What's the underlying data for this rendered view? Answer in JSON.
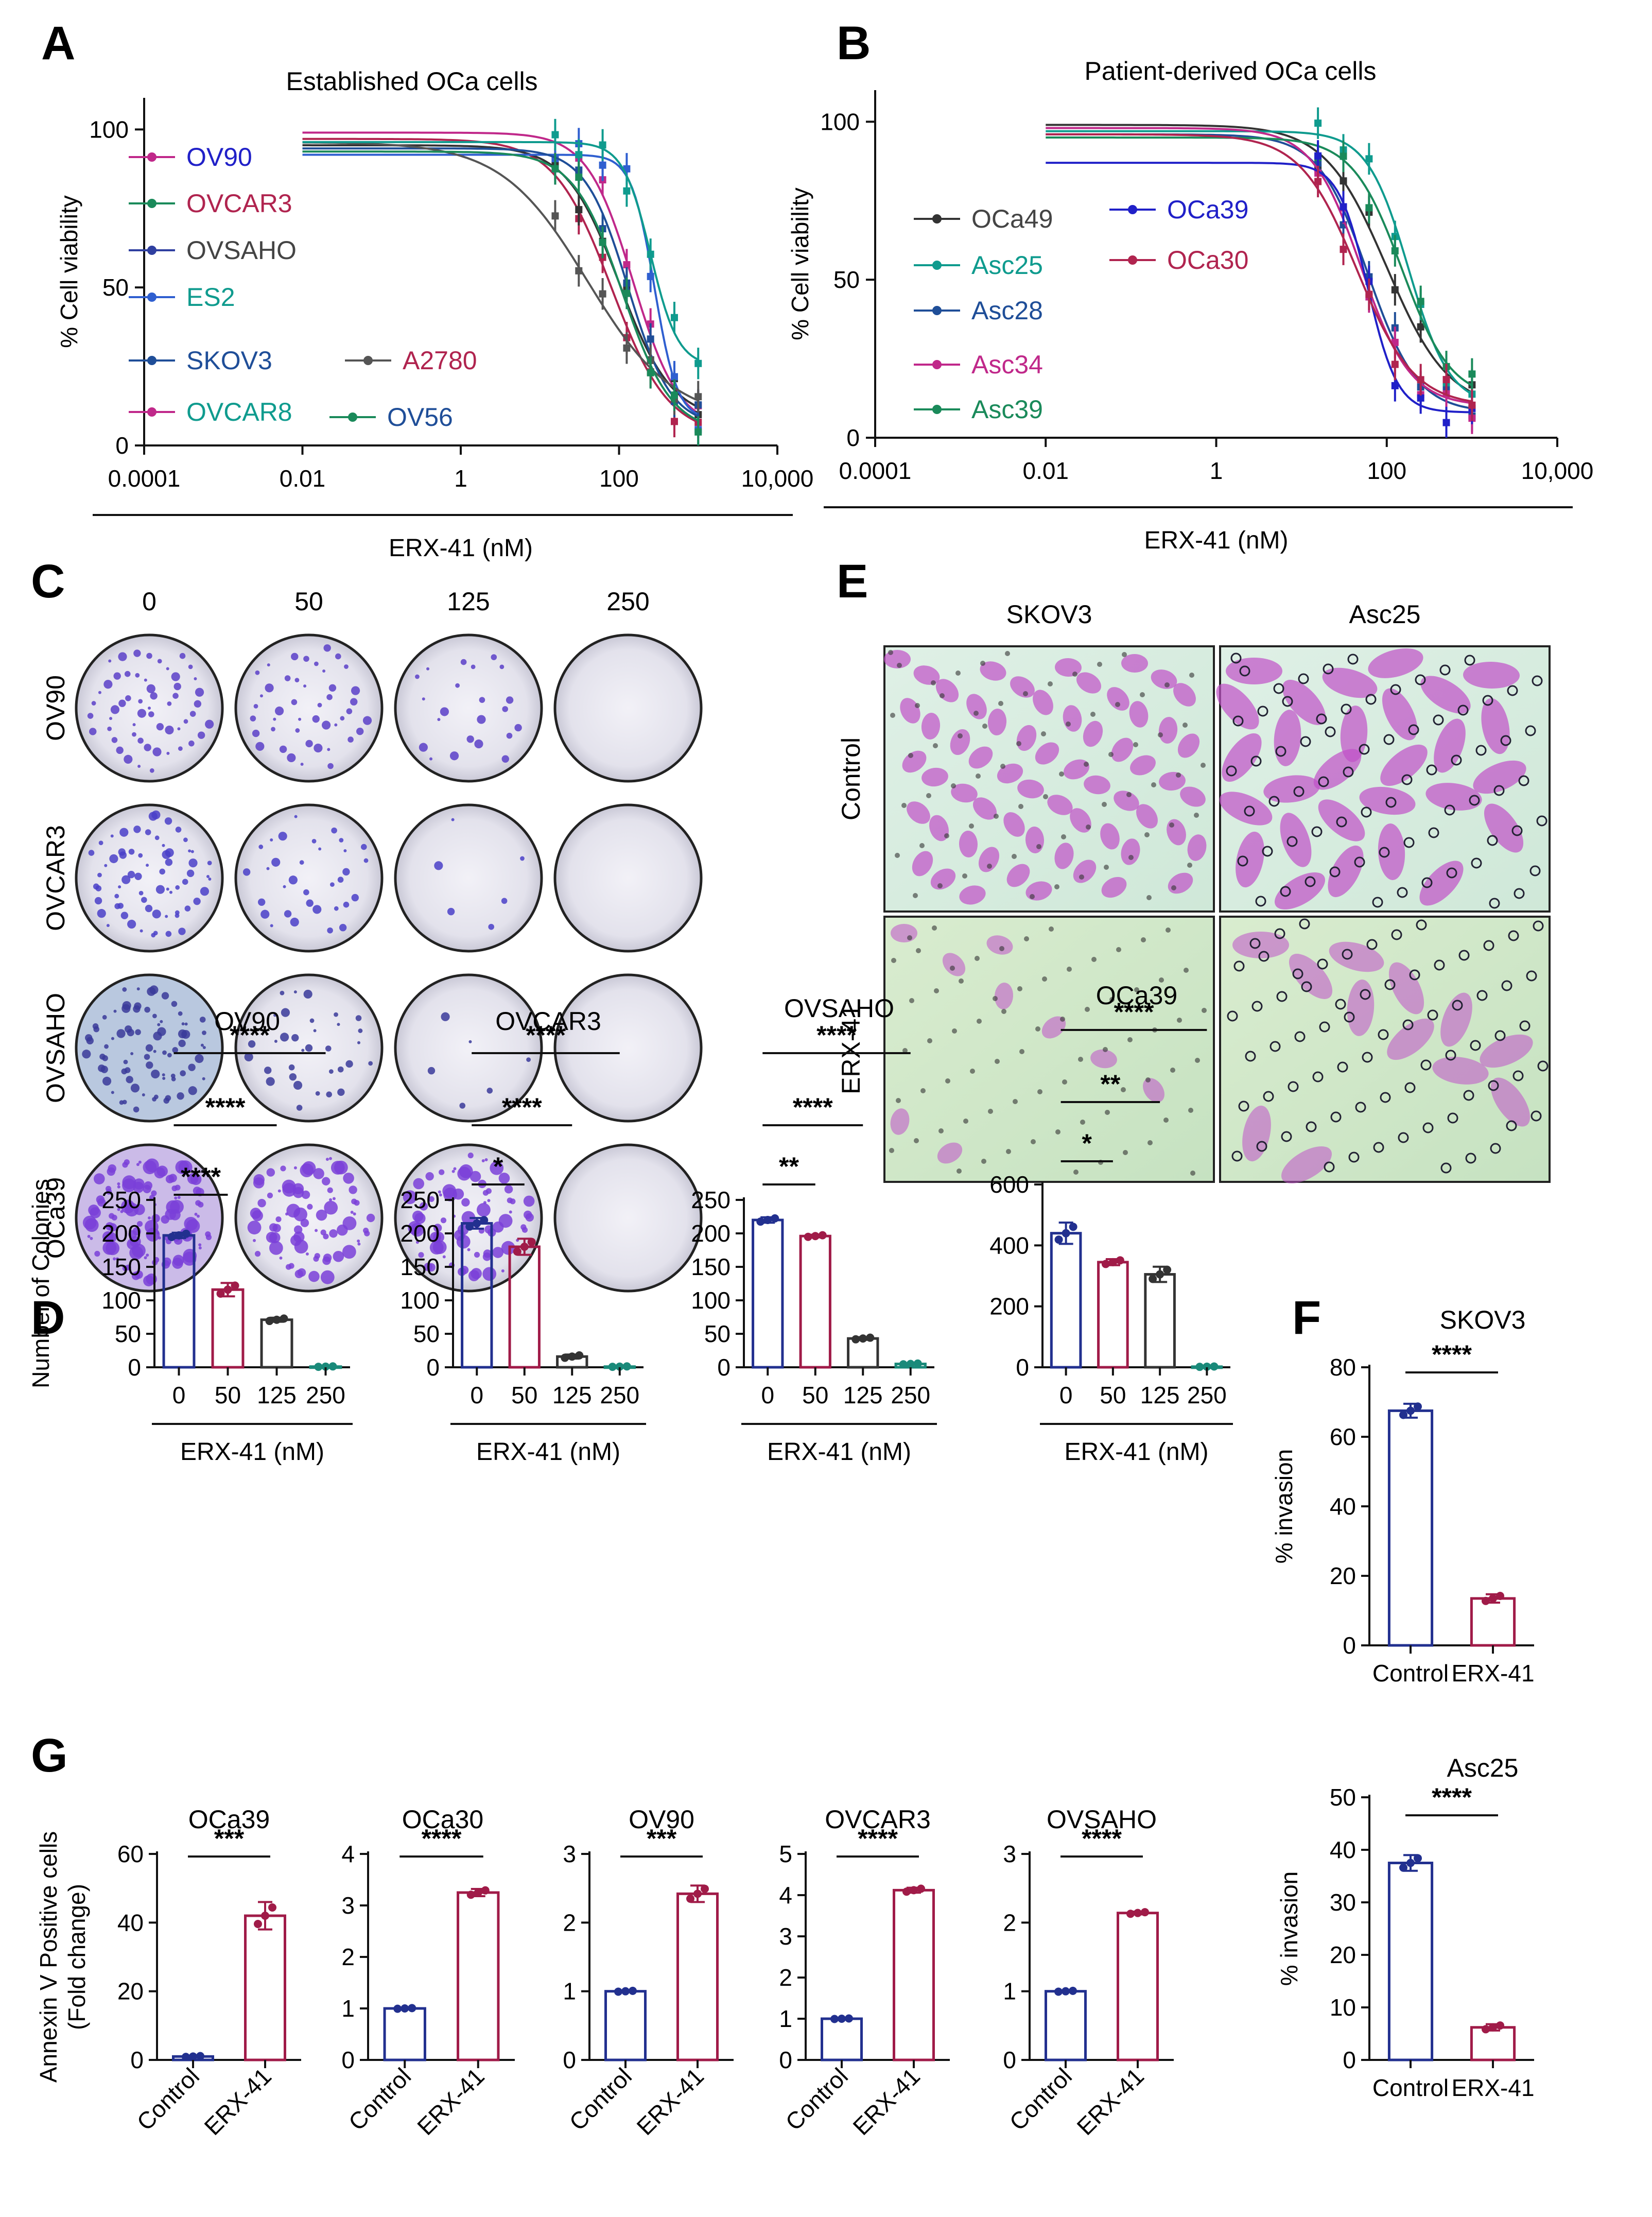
{
  "panels": {
    "A": {
      "letter": "A",
      "title": "Established OCa cells"
    },
    "B": {
      "letter": "B",
      "title": "Patient-derived OCa cells"
    },
    "C": {
      "letter": "C"
    },
    "D": {
      "letter": "D"
    },
    "E": {
      "letter": "E"
    },
    "F": {
      "letter": "F"
    },
    "G": {
      "letter": "G"
    }
  },
  "panel_C": {
    "concentrations": [
      "0",
      "50",
      "125",
      "250"
    ],
    "rows": [
      {
        "label": "OV90",
        "density": [
          0.5,
          0.4,
          0.2,
          0
        ]
      },
      {
        "label": "OVCAR3",
        "density": [
          0.6,
          0.3,
          0.05,
          0
        ]
      },
      {
        "label": "OVSAHO",
        "density": [
          0.7,
          0.3,
          0.05,
          0
        ]
      },
      {
        "label": "OCa39",
        "density": [
          1.0,
          0.7,
          0.7,
          0
        ]
      }
    ]
  },
  "panel_E": {
    "columns": [
      "SKOV3",
      "Asc25"
    ],
    "rows": [
      "Control",
      "ERX-41"
    ]
  },
  "chart_data": [
    {
      "id": "A",
      "type": "line",
      "title": "Established OCa cells",
      "xlabel": "ERX-41 (nM)",
      "ylabel": "% Cell viability",
      "xscale": "log",
      "xlim": [
        0.0001,
        10000
      ],
      "ylim": [
        0,
        110
      ],
      "xticks": [
        0.0001,
        0.01,
        1,
        100,
        10000
      ],
      "xticklabels": [
        "0.0001",
        "0.01",
        "1",
        "100",
        "10,000"
      ],
      "yticks": [
        0,
        50,
        100
      ],
      "yticklabels": [
        "0",
        "50",
        "100"
      ],
      "series": [
        {
          "name": "OV90",
          "color": "#c0288a",
          "top": 99,
          "bottom": 5,
          "ic50": 150,
          "hill": 1.5
        },
        {
          "name": "OVCAR3",
          "color": "#b0244f",
          "top": 97,
          "bottom": 3,
          "ic50": 80,
          "hill": 1.2
        },
        {
          "name": "OVSAHO",
          "color": "#333333",
          "top": 95,
          "bottom": 8,
          "ic50": 100,
          "hill": 1.3
        },
        {
          "name": "ES2",
          "color": "#2f5fd0",
          "top": 92,
          "bottom": 8,
          "ic50": 280,
          "hill": 3.0
        },
        {
          "name": "SKOV3",
          "color": "#1f4e98",
          "top": 94,
          "bottom": 6,
          "ic50": 130,
          "hill": 1.6
        },
        {
          "name": "A2780",
          "color": "#555555",
          "top": 96,
          "bottom": 8,
          "ic50": 40,
          "hill": 0.8
        },
        {
          "name": "OVCAR8",
          "color": "#0f9b8e",
          "top": 96,
          "bottom": 25,
          "ic50": 250,
          "hill": 2.5
        },
        {
          "name": "OV56",
          "color": "#1a8a5a",
          "top": 93,
          "bottom": 4,
          "ic50": 110,
          "hill": 1.4
        }
      ],
      "legend": [
        {
          "name": "OV90",
          "color": "#2020c8",
          "marker": "#c0288a"
        },
        {
          "name": "OVCAR3",
          "color": "#b0244f",
          "marker": "#1a8a5a"
        },
        {
          "name": "OVSAHO",
          "color": "#444444",
          "marker": "#2f3fa0"
        },
        {
          "name": "ES2",
          "color": "#0f9b8e",
          "marker": "#2f5fd0"
        },
        {
          "name": "SKOV3",
          "color": "#1f4e98",
          "marker": "#1f4e98"
        },
        {
          "name": "A2780",
          "color": "#b0244f",
          "marker": "#555555"
        },
        {
          "name": "OVCAR8",
          "color": "#0f9b8e",
          "marker": "#c0288a"
        },
        {
          "name": "OV56",
          "color": "#1f4e98",
          "marker": "#1a8a5a"
        }
      ]
    },
    {
      "id": "B",
      "type": "line",
      "title": "Patient-derived OCa cells",
      "xlabel": "ERX-41 (nM)",
      "ylabel": "% Cell viability",
      "xscale": "log",
      "xlim": [
        0.0001,
        10000
      ],
      "ylim": [
        0,
        110
      ],
      "xticks": [
        0.0001,
        0.01,
        1,
        100,
        10000
      ],
      "xticklabels": [
        "0.0001",
        "0.01",
        "1",
        "100",
        "10,000"
      ],
      "yticks": [
        0,
        50,
        100
      ],
      "yticklabels": [
        "0",
        "50",
        "100"
      ],
      "series": [
        {
          "name": "OCa49",
          "color": "#333333",
          "top": 99,
          "bottom": 9,
          "ic50": 100,
          "hill": 1.2
        },
        {
          "name": "Asc25",
          "color": "#0f9b8e",
          "top": 97,
          "bottom": 10,
          "ic50": 180,
          "hill": 1.8
        },
        {
          "name": "Asc28",
          "color": "#1f4e98",
          "top": 96,
          "bottom": 8,
          "ic50": 60,
          "hill": 1.5
        },
        {
          "name": "Asc34",
          "color": "#c0288a",
          "top": 98,
          "bottom": 10,
          "ic50": 50,
          "hill": 1.5
        },
        {
          "name": "Asc39",
          "color": "#1a8a5a",
          "top": 95,
          "bottom": 12,
          "ic50": 150,
          "hill": 1.5
        },
        {
          "name": "OCa39",
          "color": "#2020c8",
          "top": 87,
          "bottom": 8,
          "ic50": 60,
          "hill": 2.5
        },
        {
          "name": "OCa30",
          "color": "#b0244f",
          "top": 96,
          "bottom": 10,
          "ic50": 45,
          "hill": 1.3
        }
      ],
      "legend": [
        {
          "name": "OCa49",
          "color": "#444444",
          "marker": "#333333"
        },
        {
          "name": "Asc25",
          "color": "#0f9b8e",
          "marker": "#0f9b8e"
        },
        {
          "name": "Asc28",
          "color": "#1f4e98",
          "marker": "#1f4e98"
        },
        {
          "name": "Asc34",
          "color": "#c0288a",
          "marker": "#c0288a"
        },
        {
          "name": "Asc39",
          "color": "#1a8a5a",
          "marker": "#1a8a5a"
        },
        {
          "name": "OCa39",
          "color": "#2020c8",
          "marker": "#2020c8"
        },
        {
          "name": "OCa30",
          "color": "#b0244f",
          "marker": "#b0244f"
        }
      ]
    },
    {
      "id": "D1",
      "type": "bar",
      "title": "OV90",
      "xlabel": "ERX-41 (nM)",
      "ylabel": "Number of Colonies",
      "categories": [
        "0",
        "50",
        "125",
        "250"
      ],
      "values": [
        197,
        116,
        71,
        1
      ],
      "errors": [
        4,
        10,
        3,
        0.5
      ],
      "colors": [
        "#22308f",
        "#a01b48",
        "#333333",
        "#1a8a7a"
      ],
      "ylim": [
        0,
        250
      ],
      "yticks": [
        0,
        50,
        100,
        150,
        200,
        250
      ],
      "sig": [
        {
          "to": 1,
          "label": "****"
        },
        {
          "to": 2,
          "label": "****"
        },
        {
          "to": 3,
          "label": "****"
        }
      ]
    },
    {
      "id": "D2",
      "type": "bar",
      "title": "OVCAR3",
      "xlabel": "ERX-41 (nM)",
      "categories": [
        "0",
        "50",
        "125",
        "250"
      ],
      "values": [
        215,
        180,
        16,
        1
      ],
      "errors": [
        8,
        12,
        3,
        0.5
      ],
      "colors": [
        "#22308f",
        "#a01b48",
        "#333333",
        "#1a8a7a"
      ],
      "ylim": [
        0,
        250
      ],
      "yticks": [
        0,
        50,
        100,
        150,
        200,
        250
      ],
      "sig": [
        {
          "to": 1,
          "label": "*"
        },
        {
          "to": 2,
          "label": "****"
        },
        {
          "to": 3,
          "label": "****"
        }
      ]
    },
    {
      "id": "D3",
      "type": "bar",
      "title": "OVSAHO",
      "xlabel": "ERX-41 (nM)",
      "categories": [
        "0",
        "50",
        "125",
        "250"
      ],
      "values": [
        220,
        196,
        43,
        5
      ],
      "errors": [
        4,
        2,
        2,
        1
      ],
      "colors": [
        "#22308f",
        "#a01b48",
        "#333333",
        "#1a8a7a"
      ],
      "ylim": [
        0,
        250
      ],
      "yticks": [
        0,
        50,
        100,
        150,
        200,
        250
      ],
      "sig": [
        {
          "to": 1,
          "label": "**"
        },
        {
          "to": 2,
          "label": "****"
        },
        {
          "to": 3,
          "label": "****"
        }
      ]
    },
    {
      "id": "D4",
      "type": "bar",
      "title": "OCa39",
      "xlabel": "ERX-41 (nM)",
      "categories": [
        "0",
        "50",
        "125",
        "250"
      ],
      "values": [
        440,
        345,
        305,
        2
      ],
      "errors": [
        35,
        10,
        25,
        1
      ],
      "colors": [
        "#22308f",
        "#a01b48",
        "#333333",
        "#1a8a7a"
      ],
      "ylim": [
        0,
        600
      ],
      "yticks": [
        0,
        200,
        400,
        600
      ],
      "sig": [
        {
          "to": 1,
          "label": "*"
        },
        {
          "to": 2,
          "label": "**"
        },
        {
          "to": 3,
          "label": "****"
        }
      ]
    },
    {
      "id": "F1",
      "type": "bar",
      "title": "SKOV3",
      "ylabel": "% invasion",
      "categories": [
        "Control",
        "ERX-41"
      ],
      "values": [
        67.5,
        13.5
      ],
      "errors": [
        2,
        1.2
      ],
      "colors": [
        "#22308f",
        "#a01b48"
      ],
      "ylim": [
        0,
        80
      ],
      "yticks": [
        0,
        20,
        40,
        60,
        80
      ],
      "sig": [
        {
          "to": 1,
          "label": "****"
        }
      ]
    },
    {
      "id": "F2",
      "type": "bar",
      "title": "Asc25",
      "ylabel": "% invasion",
      "categories": [
        "Control",
        "ERX-41"
      ],
      "values": [
        37.5,
        6.2
      ],
      "errors": [
        1.5,
        0.6
      ],
      "colors": [
        "#22308f",
        "#a01b48"
      ],
      "ylim": [
        0,
        50
      ],
      "yticks": [
        0,
        10,
        20,
        30,
        40,
        50
      ],
      "sig": [
        {
          "to": 1,
          "label": "****"
        }
      ]
    },
    {
      "id": "G1",
      "type": "bar",
      "title": "OCa39",
      "ylabel": "Annexin V Positive cells (Fold change)",
      "categories": [
        "Control",
        "ERX-41"
      ],
      "values": [
        1,
        42
      ],
      "errors": [
        0.2,
        4
      ],
      "colors": [
        "#22308f",
        "#a01b48"
      ],
      "ylim": [
        0,
        60
      ],
      "yticks": [
        0,
        20,
        40,
        60
      ],
      "sig": [
        {
          "to": 1,
          "label": "***"
        }
      ]
    },
    {
      "id": "G2",
      "type": "bar",
      "title": "OCa30",
      "categories": [
        "Control",
        "ERX-41"
      ],
      "values": [
        1,
        3.25
      ],
      "errors": [
        0.01,
        0.07
      ],
      "colors": [
        "#22308f",
        "#a01b48"
      ],
      "ylim": [
        0,
        4
      ],
      "yticks": [
        0,
        1,
        2,
        3,
        4
      ],
      "sig": [
        {
          "to": 1,
          "label": "****"
        }
      ]
    },
    {
      "id": "G3",
      "type": "bar",
      "title": "OV90",
      "categories": [
        "Control",
        "ERX-41"
      ],
      "values": [
        1,
        2.42
      ],
      "errors": [
        0.01,
        0.12
      ],
      "colors": [
        "#22308f",
        "#a01b48"
      ],
      "ylim": [
        0,
        3
      ],
      "yticks": [
        0,
        1,
        2,
        3
      ],
      "sig": [
        {
          "to": 1,
          "label": "***"
        }
      ]
    },
    {
      "id": "G4",
      "type": "bar",
      "title": "OVCAR3",
      "categories": [
        "Control",
        "ERX-41"
      ],
      "values": [
        1,
        4.12
      ],
      "errors": [
        0.01,
        0.06
      ],
      "colors": [
        "#22308f",
        "#a01b48"
      ],
      "ylim": [
        0,
        5
      ],
      "yticks": [
        0,
        1,
        2,
        3,
        4,
        5
      ],
      "sig": [
        {
          "to": 1,
          "label": "****"
        }
      ]
    },
    {
      "id": "G5",
      "type": "bar",
      "title": "OVSAHO",
      "categories": [
        "Control",
        "ERX-41"
      ],
      "values": [
        1,
        2.14
      ],
      "errors": [
        0.01,
        0.02
      ],
      "colors": [
        "#22308f",
        "#a01b48"
      ],
      "ylim": [
        0,
        3
      ],
      "yticks": [
        0,
        1,
        2,
        3
      ],
      "sig": [
        {
          "to": 1,
          "label": "****"
        }
      ]
    }
  ]
}
